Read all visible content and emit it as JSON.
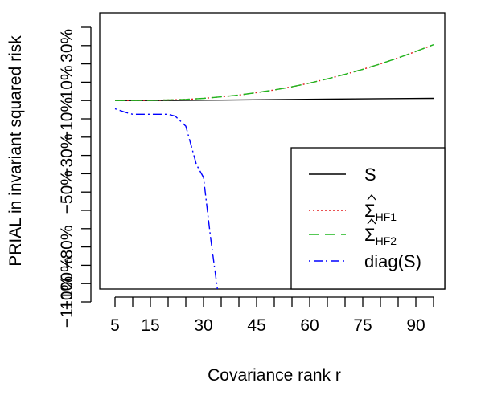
{
  "chart_data": {
    "type": "line",
    "title": "",
    "xlabel": "Covariance rank r",
    "ylabel": "PRIAL in invariant squared risk",
    "xlim": [
      5,
      95
    ],
    "ylim": [
      -110,
      40
    ],
    "x_ticks": [
      5,
      10,
      15,
      20,
      25,
      30,
      35,
      40,
      45,
      50,
      55,
      60,
      65,
      70,
      75,
      80,
      85,
      90,
      95
    ],
    "x_tick_labels": [
      {
        "value": 5,
        "label": "5"
      },
      {
        "value": 15,
        "label": "15"
      },
      {
        "value": 30,
        "label": "30"
      },
      {
        "value": 45,
        "label": "45"
      },
      {
        "value": 60,
        "label": "60"
      },
      {
        "value": 75,
        "label": "75"
      },
      {
        "value": 90,
        "label": "90"
      }
    ],
    "y_ticks": [
      -110,
      -100,
      -90,
      -80,
      -70,
      -60,
      -50,
      -40,
      -30,
      -20,
      -10,
      0,
      10,
      20,
      30,
      40
    ],
    "y_tick_labels": [
      {
        "value": -110,
        "label": "−110%"
      },
      {
        "value": -100,
        "label": "−100%"
      },
      {
        "value": -80,
        "label": "−80%"
      },
      {
        "value": -50,
        "label": "−50%"
      },
      {
        "value": -30,
        "label": "−30%"
      },
      {
        "value": -10,
        "label": "−10%"
      },
      {
        "value": 10,
        "label": "10%"
      },
      {
        "value": 30,
        "label": "30%"
      }
    ],
    "grid": false,
    "legend_placement": "bottom-right",
    "series": [
      {
        "name": "S",
        "color": "#000000",
        "dash": "solid",
        "x": [
          5,
          20,
          35,
          50,
          65,
          80,
          95
        ],
        "y": [
          0,
          0,
          0.2,
          0.5,
          0.8,
          1.0,
          1.2
        ]
      },
      {
        "name": "Σ HF1",
        "color": "#e41a1c",
        "dash": "dotted",
        "x": [
          5,
          10,
          15,
          20,
          25,
          30,
          35,
          40,
          45,
          50,
          55,
          60,
          65,
          70,
          75,
          80,
          85,
          90,
          95
        ],
        "y": [
          0,
          0,
          0.1,
          0.3,
          0.6,
          1.2,
          2.0,
          3.0,
          4.3,
          5.8,
          7.5,
          9.5,
          11.8,
          14.3,
          17.0,
          20.0,
          23.3,
          26.8,
          30.5
        ]
      },
      {
        "name": "Σ HF2",
        "color": "#1fb71f",
        "dash": "dashed",
        "x": [
          5,
          10,
          15,
          20,
          25,
          30,
          35,
          40,
          45,
          50,
          55,
          60,
          65,
          70,
          75,
          80,
          85,
          90,
          95
        ],
        "y": [
          0,
          0,
          0.1,
          0.3,
          0.6,
          1.2,
          2.0,
          3.0,
          4.3,
          5.8,
          7.5,
          9.5,
          11.8,
          14.3,
          17.0,
          20.0,
          23.3,
          26.8,
          30.5
        ]
      },
      {
        "name": "diag(S)",
        "color": "#0000ff",
        "dash": "dotdash",
        "x": [
          5,
          8,
          10,
          15,
          20,
          22,
          25,
          28,
          30,
          32,
          34
        ],
        "y": [
          -4.5,
          -6.5,
          -7.5,
          -7.5,
          -7.5,
          -8.5,
          -14,
          -35,
          -42,
          -75,
          -104
        ]
      }
    ]
  }
}
